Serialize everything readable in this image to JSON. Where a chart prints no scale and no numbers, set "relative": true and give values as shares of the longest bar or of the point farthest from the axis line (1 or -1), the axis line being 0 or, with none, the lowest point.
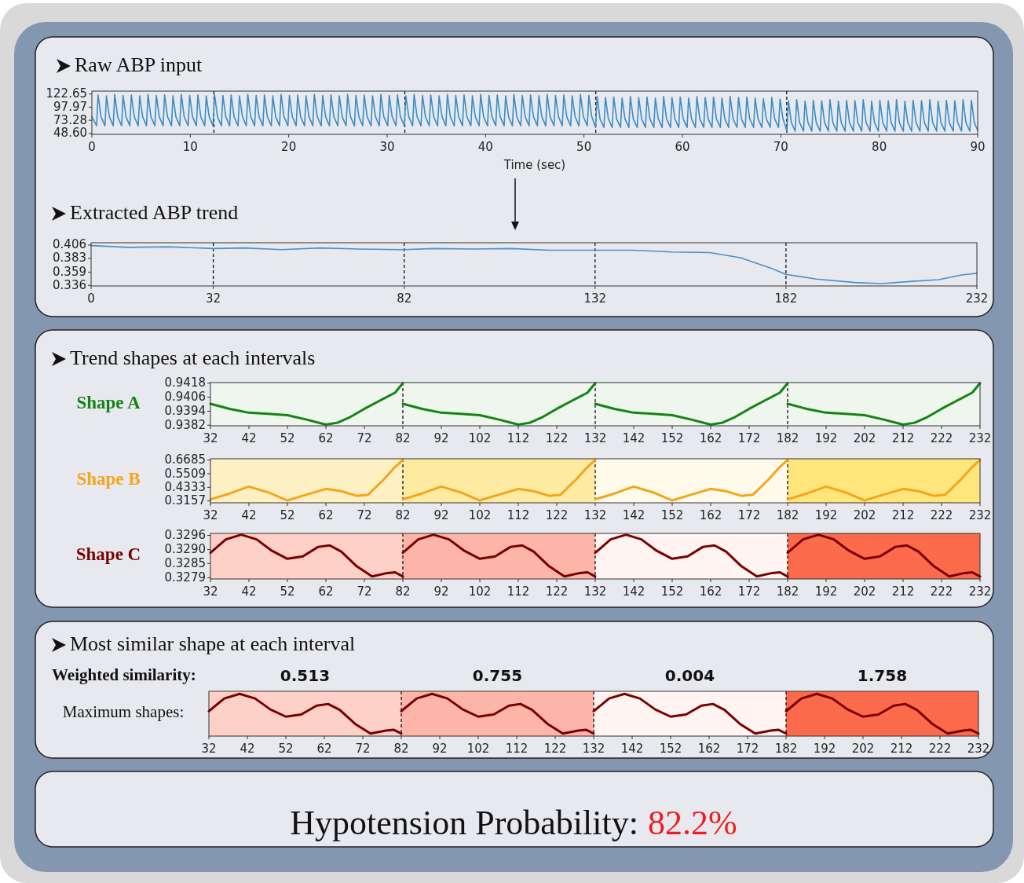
{
  "chart_data": [
    {
      "type": "line",
      "title": "Raw ABP input",
      "xlabel": "Time (sec)",
      "xlim": [
        0,
        90
      ],
      "ylim": [
        47,
        128
      ],
      "xticks": [
        0,
        10,
        20,
        30,
        40,
        50,
        60,
        70,
        80,
        90
      ],
      "yticks": [
        122.65,
        97.97,
        73.28,
        {
          "value": 48.6,
          "label": "48.60"
        }
      ],
      "ref_lines": [
        {
          "axis": "x",
          "value": 12.4,
          "color": "#000000",
          "line_style": "dashed"
        },
        {
          "axis": "x",
          "value": 31.8,
          "color": "#000000",
          "line_style": "dashed"
        },
        {
          "axis": "x",
          "value": 51.2,
          "color": "#000000",
          "line_style": "dashed"
        },
        {
          "axis": "x",
          "value": 70.6,
          "color": "#000000",
          "line_style": "dashed"
        }
      ],
      "series": [
        {
          "color": "#3a8dc6",
          "x": [
            0,
            0.48,
            0.63,
            0.93,
            1.33,
            1.48,
            1.78,
            2.17,
            2.32,
            2.62,
            3.02,
            3.17,
            3.47,
            3.86,
            4.01,
            4.31,
            4.71,
            4.86,
            5.16,
            5.55,
            5.7,
            6.0,
            6.4,
            6.55,
            6.85,
            7.24,
            7.39,
            7.69,
            8.09,
            8.24,
            8.54,
            8.93,
            9.08,
            9.38,
            9.78,
            9.93,
            10.23,
            10.62,
            10.77,
            11.07,
            11.47,
            11.62,
            11.92,
            12.31,
            12.46,
            12.76,
            13.16,
            13.31,
            13.61,
            14.0,
            14.15,
            14.45,
            14.85,
            15.0,
            15.3,
            15.69,
            15.84,
            16.14,
            16.54,
            16.69,
            16.99,
            17.38,
            17.53,
            17.83,
            18.23,
            18.38,
            18.68,
            19.07,
            19.22,
            19.52,
            19.92,
            20.07,
            20.37,
            20.76,
            20.91,
            21.21,
            21.61,
            21.76,
            22.06,
            22.45,
            22.6,
            22.9,
            23.3,
            23.45,
            23.75,
            24.14,
            24.29,
            24.59,
            24.99,
            25.14,
            25.44,
            25.83,
            25.98,
            26.28,
            26.68,
            26.83,
            27.13,
            27.52,
            27.67,
            27.97,
            28.37,
            28.52,
            28.82,
            29.21,
            29.36,
            29.66,
            30.06,
            30.21,
            30.51,
            30.9,
            31.05,
            31.35,
            31.75,
            31.9,
            32.2,
            32.59,
            32.74,
            33.04,
            33.44,
            33.59,
            33.89,
            34.28,
            34.43,
            34.73,
            35.13,
            35.28,
            35.58,
            35.97,
            36.12,
            36.42,
            36.82,
            36.97,
            37.27,
            37.66,
            37.81,
            38.11,
            38.51,
            38.66,
            38.96,
            39.35,
            39.5,
            39.8,
            40.2,
            40.35,
            40.65,
            41.04,
            41.19,
            41.49,
            41.89,
            42.04,
            42.34,
            42.73,
            42.88,
            43.18,
            43.58,
            43.73,
            44.03,
            44.42,
            44.57,
            44.87,
            45.27,
            45.42,
            45.72,
            46.11,
            46.26,
            46.56,
            46.96,
            47.11,
            47.41,
            47.8,
            47.95,
            48.25,
            48.65,
            48.8,
            49.1,
            49.49,
            49.64,
            49.94,
            50.34,
            50.49,
            50.79,
            51.18,
            51.33,
            51.63,
            52.03,
            52.18,
            52.48,
            52.87,
            53.02,
            53.32,
            53.72,
            53.87,
            54.17,
            54.56,
            54.71,
            55.01,
            55.41,
            55.56,
            55.86,
            56.25,
            56.4,
            56.7,
            57.1,
            57.25,
            57.55,
            57.94,
            58.09,
            58.39,
            58.79,
            58.94,
            59.24,
            59.63,
            59.78,
            60.08,
            60.48,
            60.63,
            60.93,
            61.32,
            61.47,
            61.77,
            62.17,
            62.32,
            62.62,
            63.01,
            63.16,
            63.46,
            63.86,
            64.01,
            64.31,
            64.7,
            64.85,
            65.15,
            65.55,
            65.7,
            66.0,
            66.39,
            66.54,
            66.84,
            67.24,
            67.39,
            67.69,
            68.08,
            68.23,
            68.53,
            68.93,
            69.08,
            69.38,
            69.77,
            69.92,
            70.22,
            70.62,
            70.77,
            71.07,
            71.46,
            71.61,
            71.91,
            72.31,
            72.46,
            72.76,
            73.15,
            73.3,
            73.6,
            74.0,
            74.15,
            74.45,
            74.84,
            74.99,
            75.29,
            75.69,
            75.84,
            76.14,
            76.53,
            76.68,
            76.98,
            77.38,
            77.53,
            77.83,
            78.22,
            78.37,
            78.67,
            79.07,
            79.22,
            79.52,
            79.91,
            80.06,
            80.36,
            80.76,
            80.91,
            81.21,
            81.6,
            81.75,
            82.05,
            82.45,
            82.6,
            82.9,
            83.29,
            83.44,
            83.74,
            84.14,
            84.29,
            84.59,
            84.98,
            85.13,
            85.43,
            85.83,
            85.98,
            86.28,
            86.67,
            86.82,
            87.12,
            87.52,
            87.67,
            87.97,
            88.36,
            88.51,
            88.81,
            89.21,
            89.36,
            89.66,
            90
          ],
          "values": [
            80,
            63,
            121,
            80,
            63,
            119,
            80,
            63,
            122,
            80,
            63,
            120,
            80,
            63,
            121,
            80,
            63,
            119,
            80,
            63,
            122,
            80,
            63,
            120,
            80,
            63,
            121,
            80,
            63,
            119,
            80,
            63,
            122,
            80,
            63,
            120,
            80,
            63,
            121,
            80,
            63,
            119,
            80,
            63,
            122,
            80,
            63,
            120,
            80,
            63,
            121,
            80,
            63,
            119,
            80,
            63,
            122,
            80,
            63,
            120,
            80,
            63,
            121,
            80,
            63,
            119,
            80,
            63,
            122,
            80,
            63,
            120,
            80,
            63,
            121,
            80,
            63,
            119,
            80,
            63,
            122,
            80,
            63,
            120,
            80,
            63,
            121,
            80,
            63,
            119,
            80,
            63,
            122,
            80,
            63,
            120,
            80,
            63,
            121,
            80,
            63,
            119,
            80,
            63,
            122,
            80,
            63,
            120,
            80,
            63,
            121,
            80,
            63,
            119,
            80,
            63,
            122,
            80,
            63,
            120,
            80,
            63,
            121,
            80,
            63,
            119,
            80,
            63,
            122,
            80,
            63,
            120,
            80,
            63,
            121,
            80,
            63,
            119,
            80,
            63,
            122,
            80,
            63,
            120,
            80,
            63,
            121,
            80,
            63,
            119,
            80,
            63,
            122,
            80,
            63,
            120,
            80,
            63,
            121,
            80,
            63,
            119,
            80,
            63,
            122,
            80,
            63,
            120,
            80,
            63,
            121,
            80,
            63,
            119,
            80,
            63,
            122,
            80,
            63,
            120,
            80,
            60,
            118,
            76,
            60,
            116,
            76,
            60,
            117,
            76,
            60,
            115,
            76,
            60,
            118,
            76,
            60,
            116,
            76,
            60,
            117,
            76,
            60,
            115,
            76,
            60,
            118,
            76,
            60,
            116,
            76,
            60,
            117,
            76,
            60,
            115,
            76,
            60,
            118,
            76,
            60,
            116,
            76,
            60,
            117,
            76,
            60,
            115,
            76,
            60,
            118,
            76,
            60,
            116,
            76,
            60,
            117,
            76,
            60,
            115,
            76,
            60,
            114,
            76,
            60,
            116,
            76,
            60,
            113,
            76,
            53,
            110,
            69,
            53,
            112,
            69,
            53,
            109,
            69,
            53,
            111,
            69,
            53,
            110,
            69,
            53,
            112,
            69,
            53,
            109,
            69,
            53,
            111,
            69,
            53,
            110,
            69,
            53,
            112,
            69,
            53,
            109,
            69,
            53,
            111,
            69,
            53,
            110,
            69,
            53,
            112,
            69,
            53,
            109,
            69,
            53,
            111,
            69,
            53,
            110,
            69,
            53,
            112,
            69,
            53,
            109,
            69,
            53,
            111,
            69,
            53,
            110,
            69,
            53,
            112,
            69,
            53,
            111,
            69,
            55
          ]
        }
      ]
    },
    {
      "type": "line",
      "title": "Extracted ABP trend",
      "xlim": [
        0,
        232
      ],
      "ylim": [
        0.335,
        0.41
      ],
      "xticks": [
        0,
        32,
        82,
        132,
        182,
        232
      ],
      "yticks": [
        0.406,
        0.383,
        0.359,
        0.336
      ],
      "ref_lines": [
        {
          "axis": "x",
          "value": 32,
          "color": "#000000",
          "line_style": "dashed"
        },
        {
          "axis": "x",
          "value": 82,
          "color": "#000000",
          "line_style": "dashed"
        },
        {
          "axis": "x",
          "value": 132,
          "color": "#000000",
          "line_style": "dashed"
        },
        {
          "axis": "x",
          "value": 182,
          "color": "#000000",
          "line_style": "dashed"
        }
      ],
      "series": [
        {
          "color": "#4a90c8",
          "x": [
            0,
            10,
            20,
            32,
            40,
            50,
            60,
            70,
            82,
            90,
            100,
            110,
            120,
            132,
            142,
            152,
            162,
            170,
            178,
            182,
            190,
            200,
            207,
            215,
            222,
            228,
            232
          ],
          "values": [
            0.405,
            0.402,
            0.403,
            0.4,
            0.401,
            0.398,
            0.401,
            0.399,
            0.398,
            0.4,
            0.399,
            0.4,
            0.397,
            0.397,
            0.397,
            0.394,
            0.393,
            0.384,
            0.366,
            0.355,
            0.347,
            0.341,
            0.339,
            0.343,
            0.346,
            0.354,
            0.357
          ]
        }
      ]
    },
    {
      "type": "line",
      "title": "Trend shapes at each intervals",
      "ylabel": "Shape A",
      "xlim": [
        32,
        232
      ],
      "ylim": [
        0.93815,
        0.94185
      ],
      "xticks": [
        32,
        42,
        52,
        62,
        72,
        82,
        92,
        102,
        112,
        122,
        132,
        142,
        152,
        162,
        172,
        182,
        192,
        202,
        212,
        222,
        232
      ],
      "yticks": [
        0.9418,
        0.9406,
        0.9394,
        0.9382
      ],
      "bands": [
        {
          "axis": "x",
          "from": 32,
          "to": 82,
          "color": "#eef6ee"
        },
        {
          "axis": "x",
          "from": 82,
          "to": 132,
          "color": "#eef6ee"
        },
        {
          "axis": "x",
          "from": 132,
          "to": 182,
          "color": "#eef6ee"
        },
        {
          "axis": "x",
          "from": 182,
          "to": 232,
          "color": "#eef6ee"
        }
      ],
      "ref_lines": [
        {
          "axis": "x",
          "value": 82,
          "color": "#000000",
          "line_style": "dashed"
        },
        {
          "axis": "x",
          "value": 132,
          "color": "#000000",
          "line_style": "dashed"
        },
        {
          "axis": "x",
          "value": 182,
          "color": "#000000",
          "line_style": "dashed"
        }
      ],
      "series": [
        {
          "color": "#138413",
          "x": [
            32,
            37,
            42,
            47,
            52,
            57,
            62,
            65,
            68,
            72,
            76,
            80,
            82
          ],
          "values": [
            0.94003,
            0.9396,
            0.93927,
            0.93917,
            0.93906,
            0.93868,
            0.93825,
            0.93841,
            0.93884,
            0.9396,
            0.9403,
            0.94099,
            0.9418
          ]
        },
        {
          "color": "#138413",
          "x": [
            82,
            87,
            92,
            97,
            102,
            107,
            112,
            115,
            118,
            122,
            126,
            130,
            132
          ],
          "values": [
            0.94003,
            0.9396,
            0.93927,
            0.93917,
            0.93906,
            0.93868,
            0.93825,
            0.93841,
            0.93884,
            0.9396,
            0.9403,
            0.94099,
            0.9418
          ]
        },
        {
          "color": "#138413",
          "x": [
            132,
            137,
            142,
            147,
            152,
            157,
            162,
            165,
            168,
            172,
            176,
            180,
            182
          ],
          "values": [
            0.94003,
            0.9396,
            0.93927,
            0.93917,
            0.93906,
            0.93868,
            0.93825,
            0.93841,
            0.93884,
            0.9396,
            0.9403,
            0.94099,
            0.9418
          ]
        },
        {
          "color": "#138413",
          "x": [
            182,
            187,
            192,
            197,
            202,
            207,
            212,
            215,
            218,
            222,
            226,
            230,
            232
          ],
          "values": [
            0.94003,
            0.9396,
            0.93927,
            0.93917,
            0.93906,
            0.93868,
            0.93825,
            0.93841,
            0.93884,
            0.9396,
            0.9403,
            0.94099,
            0.9418
          ]
        }
      ]
    },
    {
      "type": "line",
      "ylabel": "Shape B",
      "xlim": [
        32,
        232
      ],
      "ylim": [
        0.3,
        0.68
      ],
      "xticks": [
        32,
        42,
        52,
        62,
        72,
        82,
        92,
        102,
        112,
        122,
        132,
        142,
        152,
        162,
        172,
        182,
        192,
        202,
        212,
        222,
        232
      ],
      "yticks": [
        0.6685,
        0.5509,
        0.4333,
        0.3157
      ],
      "bands": [
        {
          "axis": "x",
          "from": 32,
          "to": 82,
          "color": "#fdf1c3"
        },
        {
          "axis": "x",
          "from": 82,
          "to": 132,
          "color": "#fdeba2"
        },
        {
          "axis": "x",
          "from": 132,
          "to": 182,
          "color": "#fffaea"
        },
        {
          "axis": "x",
          "from": 182,
          "to": 232,
          "color": "#fee67c"
        }
      ],
      "ref_lines": [
        {
          "axis": "x",
          "value": 82,
          "color": "#000000",
          "line_style": "dashed"
        },
        {
          "axis": "x",
          "value": 132,
          "color": "#000000",
          "line_style": "dashed"
        },
        {
          "axis": "x",
          "value": 182,
          "color": "#000000",
          "line_style": "dashed"
        }
      ],
      "series": [
        {
          "color": "#f5a51d",
          "x": [
            32,
            37,
            42,
            47,
            52,
            57,
            62,
            66,
            70,
            73,
            77,
            80,
            82
          ],
          "values": [
            0.33,
            0.38,
            0.44,
            0.39,
            0.32,
            0.37,
            0.42,
            0.4,
            0.36,
            0.37,
            0.5,
            0.61,
            0.67
          ]
        },
        {
          "color": "#f5a51d",
          "x": [
            82,
            87,
            92,
            97,
            102,
            107,
            112,
            116,
            120,
            123,
            127,
            130,
            132
          ],
          "values": [
            0.33,
            0.38,
            0.44,
            0.39,
            0.32,
            0.37,
            0.42,
            0.4,
            0.36,
            0.37,
            0.5,
            0.61,
            0.67
          ]
        },
        {
          "color": "#f5a51d",
          "x": [
            132,
            137,
            142,
            147,
            152,
            157,
            162,
            166,
            170,
            173,
            177,
            180,
            182
          ],
          "values": [
            0.33,
            0.38,
            0.44,
            0.39,
            0.32,
            0.37,
            0.42,
            0.4,
            0.36,
            0.37,
            0.5,
            0.61,
            0.67
          ]
        },
        {
          "color": "#f5a51d",
          "x": [
            182,
            187,
            192,
            197,
            202,
            207,
            212,
            216,
            220,
            223,
            227,
            230,
            232
          ],
          "values": [
            0.33,
            0.38,
            0.44,
            0.39,
            0.32,
            0.37,
            0.42,
            0.4,
            0.36,
            0.37,
            0.5,
            0.61,
            0.67
          ]
        }
      ]
    },
    {
      "type": "line",
      "ylabel": "Shape C",
      "xlim": [
        32,
        232
      ],
      "ylim": [
        0.32785,
        0.32968
      ],
      "xticks": [
        32,
        42,
        52,
        62,
        72,
        82,
        92,
        102,
        112,
        122,
        132,
        142,
        152,
        162,
        172,
        182,
        192,
        202,
        212,
        222,
        232
      ],
      "yticks": [
        {
          "value": 0.3296,
          "label": "0.3296"
        },
        {
          "value": 0.32903,
          "label": "0.3290"
        },
        {
          "value": 0.32847,
          "label": "0.3285"
        },
        {
          "value": 0.3279,
          "label": "0.3279"
        }
      ],
      "bands": [
        {
          "axis": "x",
          "from": 32,
          "to": 82,
          "color": "#fdd0c8"
        },
        {
          "axis": "x",
          "from": 82,
          "to": 132,
          "color": "#fcb5a8"
        },
        {
          "axis": "x",
          "from": 132,
          "to": 182,
          "color": "#fff4f1"
        },
        {
          "axis": "x",
          "from": 182,
          "to": 232,
          "color": "#fb6a4a"
        }
      ],
      "ref_lines": [
        {
          "axis": "x",
          "value": 82,
          "color": "#000000",
          "line_style": "dashed"
        },
        {
          "axis": "x",
          "value": 132,
          "color": "#000000",
          "line_style": "dashed"
        },
        {
          "axis": "x",
          "value": 182,
          "color": "#000000",
          "line_style": "dashed"
        }
      ],
      "series": [
        {
          "color": "#7a0000",
          "x": [
            32,
            36,
            40,
            44,
            48,
            52,
            56,
            60,
            63,
            66,
            70,
            74,
            78,
            80,
            82
          ],
          "values": [
            0.3289,
            0.32944,
            0.32963,
            0.32944,
            0.32898,
            0.32866,
            0.32876,
            0.32914,
            0.3292,
            0.32895,
            0.32836,
            0.32795,
            0.32809,
            0.32812,
            0.32795
          ]
        },
        {
          "color": "#7a0000",
          "x": [
            82,
            86,
            90,
            94,
            98,
            102,
            106,
            110,
            113,
            116,
            120,
            124,
            128,
            130,
            132
          ],
          "values": [
            0.3289,
            0.32944,
            0.32963,
            0.32944,
            0.32898,
            0.32866,
            0.32876,
            0.32914,
            0.3292,
            0.32895,
            0.32836,
            0.32795,
            0.32809,
            0.32812,
            0.32795
          ]
        },
        {
          "color": "#7a0000",
          "x": [
            132,
            136,
            140,
            144,
            148,
            152,
            156,
            160,
            163,
            166,
            170,
            174,
            178,
            180,
            182
          ],
          "values": [
            0.3289,
            0.32944,
            0.32963,
            0.32944,
            0.32898,
            0.32866,
            0.32876,
            0.32914,
            0.3292,
            0.32895,
            0.32836,
            0.32795,
            0.32809,
            0.32812,
            0.32795
          ]
        },
        {
          "color": "#7a0000",
          "x": [
            182,
            186,
            190,
            194,
            198,
            202,
            206,
            210,
            213,
            216,
            220,
            224,
            228,
            230,
            232
          ],
          "values": [
            0.3289,
            0.32944,
            0.32963,
            0.32944,
            0.32898,
            0.32866,
            0.32876,
            0.32914,
            0.3292,
            0.32895,
            0.32836,
            0.32795,
            0.32809,
            0.32812,
            0.32795
          ]
        }
      ]
    },
    {
      "type": "line",
      "title": "Most similar shape at each interval",
      "ylabel": "Maximum shapes:",
      "tick_labels": "x",
      "relative": true,
      "xlim": [
        32,
        232
      ],
      "xticks": [
        32,
        42,
        52,
        62,
        72,
        82,
        92,
        102,
        112,
        122,
        132,
        142,
        152,
        162,
        172,
        182,
        192,
        202,
        212,
        222,
        232
      ],
      "annotations": [
        "Weighted similarity:",
        "0.513",
        "0.755",
        "0.004",
        "1.758"
      ],
      "bands": [
        {
          "axis": "x",
          "from": 32,
          "to": 82,
          "color": "#fdd0c8"
        },
        {
          "axis": "x",
          "from": 82,
          "to": 132,
          "color": "#fcb5a8"
        },
        {
          "axis": "x",
          "from": 132,
          "to": 182,
          "color": "#fff4f1"
        },
        {
          "axis": "x",
          "from": 182,
          "to": 232,
          "color": "#fb6a4a"
        }
      ],
      "ref_lines": [
        {
          "axis": "x",
          "value": 82,
          "color": "#000000",
          "line_style": "dashed"
        },
        {
          "axis": "x",
          "value": 132,
          "color": "#000000",
          "line_style": "dashed"
        },
        {
          "axis": "x",
          "value": 182,
          "color": "#000000",
          "line_style": "dashed"
        }
      ],
      "series": [
        {
          "color": "#7a0000",
          "x": [
            32,
            36,
            40,
            44,
            48,
            52,
            56,
            60,
            63,
            66,
            70,
            74,
            78,
            80,
            82
          ],
          "values": [
            0.59,
            0.89,
            1,
            0.89,
            0.63,
            0.46,
            0.51,
            0.72,
            0.76,
            0.62,
            0.29,
            0.06,
            0.13,
            0.15,
            0.06
          ]
        },
        {
          "color": "#7a0000",
          "x": [
            82,
            86,
            90,
            94,
            98,
            102,
            106,
            110,
            113,
            116,
            120,
            124,
            128,
            130,
            132
          ],
          "values": [
            0.59,
            0.89,
            1,
            0.89,
            0.63,
            0.46,
            0.51,
            0.72,
            0.76,
            0.62,
            0.29,
            0.06,
            0.13,
            0.15,
            0.06
          ]
        },
        {
          "color": "#7a0000",
          "x": [
            132,
            136,
            140,
            144,
            148,
            152,
            156,
            160,
            163,
            166,
            170,
            174,
            178,
            180,
            182
          ],
          "values": [
            0.59,
            0.89,
            1,
            0.89,
            0.63,
            0.46,
            0.51,
            0.72,
            0.76,
            0.62,
            0.29,
            0.06,
            0.13,
            0.15,
            0.06
          ]
        },
        {
          "color": "#7a0000",
          "x": [
            182,
            186,
            190,
            194,
            198,
            202,
            206,
            210,
            213,
            216,
            220,
            224,
            228,
            230,
            232
          ],
          "values": [
            0.59,
            0.89,
            1,
            0.89,
            0.63,
            0.46,
            0.51,
            0.72,
            0.76,
            0.62,
            0.29,
            0.06,
            0.13,
            0.15,
            0.06
          ]
        }
      ]
    },
    {
      "type": "other",
      "title": "Hypotension Probability:",
      "annotations": [
        "82.2%"
      ]
    }
  ]
}
